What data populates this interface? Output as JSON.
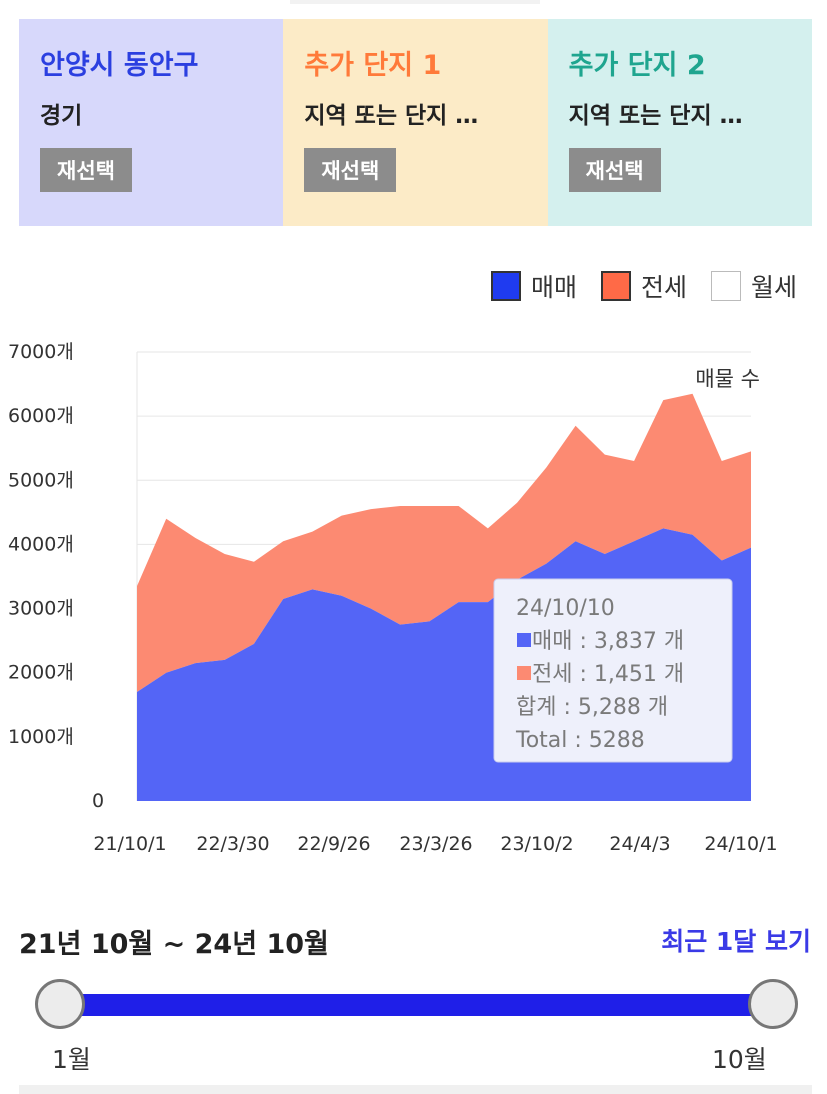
{
  "cards": [
    {
      "title": "안양시 동안구",
      "title_color": "#2b3fe0",
      "bg": "#d7d8fb",
      "sub": "경기",
      "button": "재선택"
    },
    {
      "title": "추가 단지 1",
      "title_color": "#ff7a3a",
      "bg": "#fcebc7",
      "sub": "지역 또는 단지 …",
      "button": "재선택"
    },
    {
      "title": "추가 단지 2",
      "title_color": "#1fa58f",
      "bg": "#d4f0ee",
      "sub": "지역 또는 단지 …",
      "button": "재선택"
    }
  ],
  "legend": [
    {
      "label": "매매",
      "color": "#1f3bf0"
    },
    {
      "label": "전세",
      "color": "#ff6a47"
    },
    {
      "label": "월세",
      "color": "#ffffff"
    }
  ],
  "chart_data": {
    "type": "area",
    "stacked": true,
    "annotation": "매물 수",
    "y_ticks": [
      "0",
      "1000개",
      "2000개",
      "3000개",
      "4000개",
      "5000개",
      "6000개",
      "7000개"
    ],
    "ylim": [
      0,
      7000
    ],
    "x_ticks": [
      "21/10/1",
      "22/3/30",
      "22/9/26",
      "23/3/26",
      "23/10/2",
      "24/4/3",
      "24/10/1"
    ],
    "grid": true,
    "series": [
      {
        "name": "매매",
        "color": "#5465f6",
        "values": [
          1700,
          2000,
          2150,
          2200,
          2450,
          3150,
          3300,
          3200,
          3000,
          2750,
          2800,
          3100,
          3100,
          3450,
          3700,
          4050,
          3850,
          4050,
          4250,
          4150,
          3750,
          3950
        ]
      },
      {
        "name": "전세",
        "color": "#fc8a72",
        "values": [
          1650,
          2400,
          1950,
          1650,
          1280,
          900,
          900,
          1250,
          1550,
          1850,
          1800,
          1500,
          1150,
          1200,
          1500,
          1800,
          1550,
          1250,
          2000,
          2200,
          1550,
          1500
        ]
      }
    ],
    "tooltip": {
      "date": "24/10/10",
      "sale": "매매 : 3,837 개",
      "jeonse": "전세 : 1,451 개",
      "total_kr": "합계 : 5,288 개",
      "total_en": "Total : 5288"
    }
  },
  "range": {
    "label": "21년 10월 ~ 24년 10월",
    "recent_link": "최근 1달 보기",
    "start_label": "1월",
    "end_label": "10월",
    "start_fraction": 0,
    "end_fraction": 1
  }
}
